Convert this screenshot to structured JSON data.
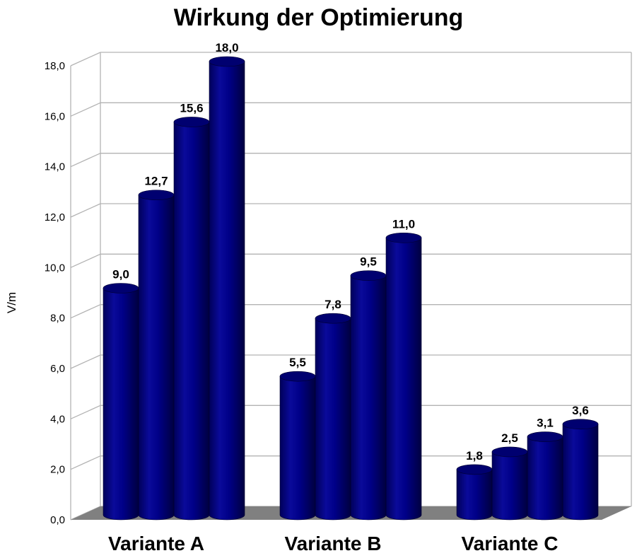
{
  "chart_data": {
    "type": "bar",
    "title": "Wirkung der Optimierung",
    "xlabel": "",
    "ylabel": "V/m",
    "ylim": [
      0,
      18
    ],
    "ytick_step": 2,
    "ytick_labels": [
      "0,0",
      "2,0",
      "4,0",
      "6,0",
      "8,0",
      "10,0",
      "12,0",
      "14,0",
      "16,0",
      "18,0"
    ],
    "categories": [
      "Variante A",
      "Variante B",
      "Variante C"
    ],
    "series": [
      {
        "values": [
          9.0,
          5.5,
          1.8
        ],
        "labels": [
          "9,0",
          "5,5",
          "1,8"
        ]
      },
      {
        "values": [
          12.7,
          7.8,
          2.5
        ],
        "labels": [
          "12,7",
          "7,8",
          "2,5"
        ]
      },
      {
        "values": [
          15.6,
          9.5,
          3.1
        ],
        "labels": [
          "15,6",
          "9,5",
          "3,1"
        ]
      },
      {
        "values": [
          18.0,
          11.0,
          3.6
        ],
        "labels": [
          "18,0",
          "11,0",
          "3,6"
        ]
      }
    ],
    "bar_color": "#000080",
    "floor_color": "#808080",
    "grid": true,
    "legend": "none",
    "style": "3d-cylinder"
  }
}
